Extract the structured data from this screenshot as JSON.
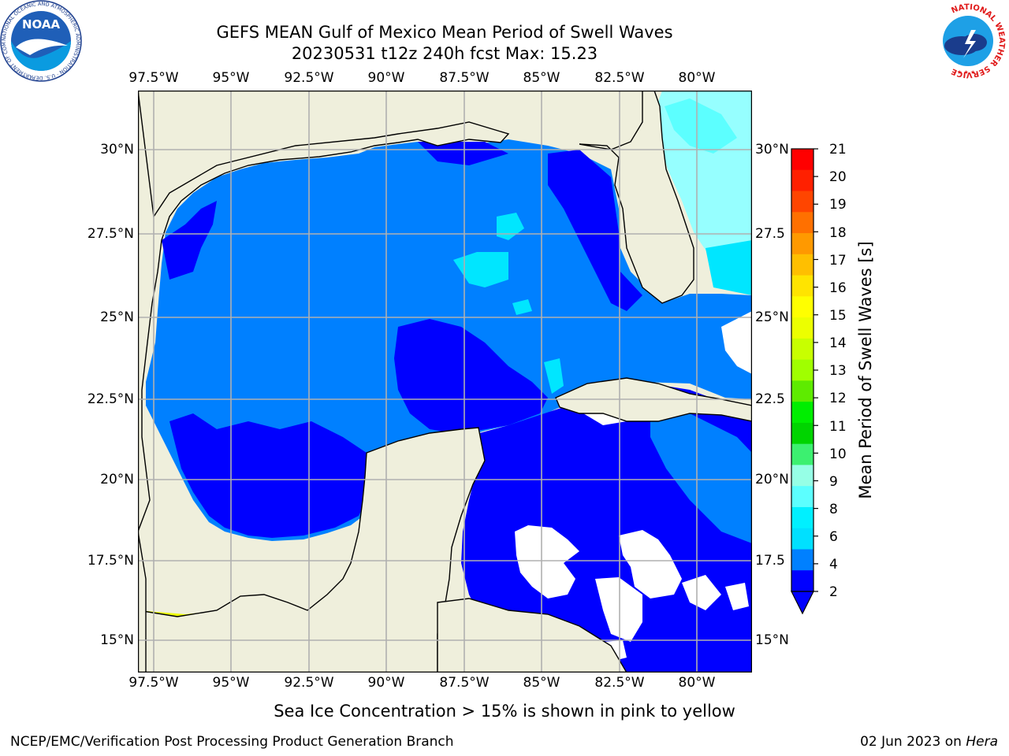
{
  "title": {
    "line1": "GEFS MEAN Gulf of Mexico Mean Period of Swell Waves",
    "line2": "20230531 t12z 240h fcst   Max: 15.23"
  },
  "axes": {
    "lon_top": [
      "97.5°W",
      "95°W",
      "92.5°W",
      "90°W",
      "87.5°W",
      "85°W",
      "82.5°W",
      "80°W"
    ],
    "lon_bottom": [
      "97.5°W",
      "95°W",
      "92.5°W",
      "90°W",
      "87.5°W",
      "85°W",
      "82.5°W",
      "80°W"
    ],
    "lat_left": [
      "30°N",
      "27.5°N",
      "25°N",
      "22.5°N",
      "20°N",
      "17.5°N",
      "15°N"
    ],
    "lat_right": [
      "30°N",
      "27.5",
      "25°N",
      "22.5",
      "20°N",
      "17.5",
      "15°N"
    ]
  },
  "colorbar": {
    "label": "Mean Period of Swell Waves [s]",
    "ticks": [
      "21",
      "20",
      "19",
      "18",
      "17",
      "16",
      "15",
      "14",
      "13",
      "12",
      "11",
      "10",
      "9",
      "8",
      "6",
      "4",
      "2"
    ],
    "colors": [
      "#ff0000",
      "#ff2000",
      "#ff4500",
      "#ff7000",
      "#ff9900",
      "#ffbf00",
      "#ffe400",
      "#ffff00",
      "#ecff00",
      "#c8ff00",
      "#a0ff00",
      "#5eeb00",
      "#00ee00",
      "#00d400",
      "#3cf070",
      "#96ffe6",
      "#5cffff",
      "#00f0ff",
      "#00e0ff",
      "#0080ff",
      "#0000ff"
    ]
  },
  "colors": {
    "land": "#efefdc",
    "deep_blue": "#0000ff",
    "mid_blue": "#0080ff",
    "cyan": "#00e6ff",
    "light_cyan": "#96ffff",
    "grid": "#b0b0b0"
  },
  "logos": {
    "left": "NOAA",
    "left_ring": "NATIONAL OCEANIC AND ATMOSPHERIC ADMINISTRATION · U.S. DEPARTMENT OF COMMERCE",
    "right_ring": "NATIONAL WEATHER SERVICE"
  },
  "note": "Sea Ice Concentration > 15% is shown in pink to yellow",
  "footer": {
    "left": "NCEP/EMC/Verification Post Processing Product Generation Branch",
    "right_date": "02 Jun 2023 on ",
    "right_host": "Hera"
  }
}
